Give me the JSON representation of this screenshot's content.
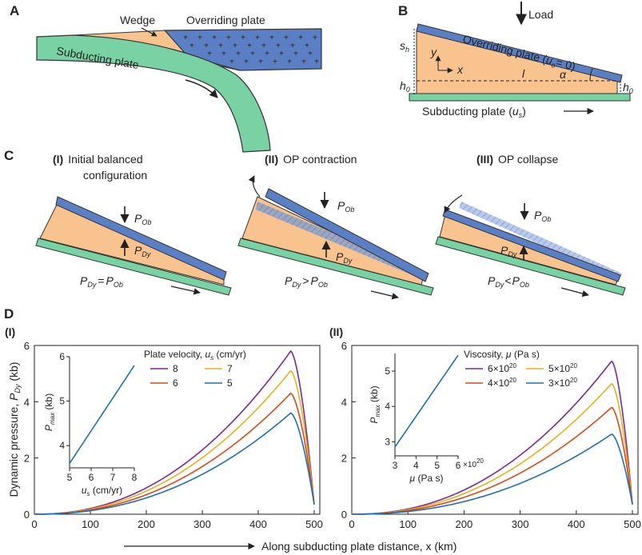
{
  "panels": {
    "A": {
      "letter": "A",
      "labels": {
        "wedge": "Wedge",
        "overriding": "Overriding plate",
        "subducting": "Subducting plate"
      }
    },
    "B": {
      "letter": "B",
      "labels": {
        "load": "Load",
        "overriding": "Overriding plate (",
        "u_o_eq": "= 0)",
        "subducting": "Subducting plate (",
        "sym_u": "u",
        "sub_o": "o",
        "sub_s": "s",
        "close_paren": ")",
        "s": "s",
        "s_sub": "h",
        "h": "h",
        "h_sub": "0",
        "y": "y",
        "x": "x",
        "l": "l",
        "alpha": "α"
      }
    },
    "C": {
      "letter": "C",
      "cases": [
        {
          "roman": "(I)",
          "title1": "Initial balanced",
          "title2": "configuration",
          "relation": "="
        },
        {
          "roman": "(II)",
          "title1": "OP contraction",
          "relation": ">"
        },
        {
          "roman": "(III)",
          "title1": "OP collapse",
          "relation": "<"
        }
      ],
      "symbols": {
        "P": "P",
        "sub_Ob": "Ob",
        "sub_Dy": "Dy"
      }
    },
    "D": {
      "letter": "D",
      "ylabel_main": "Dynamic pressure, ",
      "ylabel_sym": "P",
      "ylabel_sub": "Dy",
      "ylabel_unit": " (kb)",
      "xlabel": "Along subducting plate distance, x (km)",
      "inset_ylabel_sym": "P",
      "inset_ylabel_sub": "max",
      "inset_ylabel_unit": " (kb)"
    }
  },
  "chart_data": [
    {
      "type": "line",
      "panel": "(I)",
      "xlabel": "Along subducting plate distance, x (km)",
      "ylabel": "Dynamic pressure, P_Dy (kb)",
      "xlim": [
        0,
        510
      ],
      "ylim": [
        0,
        6
      ],
      "xticks": [
        0,
        100,
        200,
        300,
        400,
        500
      ],
      "yticks": [
        0,
        2,
        4,
        6
      ],
      "legend_title": "Plate velocity, u_s (cm/yr)",
      "legend_title_main": "Plate velocity, ",
      "legend_title_sym": "u",
      "legend_title_sub": "s",
      "legend_title_unit": " (cm/yr)",
      "series": [
        {
          "name": "8",
          "color": "#7b2a8f",
          "peak": 5.8
        },
        {
          "name": "7",
          "color": "#e6b020",
          "peak": 5.1
        },
        {
          "name": "6",
          "color": "#d8491c",
          "peak": 4.3
        },
        {
          "name": "5",
          "color": "#1f70b2",
          "peak": 3.6
        }
      ],
      "peak_x": 458,
      "end_value": 0.35,
      "inset": {
        "xlabel": "u_s (cm/yr)",
        "xlabel_sym": "u",
        "xlabel_sub": "s",
        "xlabel_unit": " (cm/yr)",
        "ylabel": "P_max (kb)",
        "x": [
          5,
          8
        ],
        "y": [
          3.6,
          5.8
        ],
        "xlim": [
          5,
          8
        ],
        "ylim": [
          3.5,
          6
        ],
        "xticks": [
          5,
          6,
          7,
          8
        ],
        "yticks": [
          4,
          5,
          6
        ],
        "color": "#1f70b2"
      }
    },
    {
      "type": "line",
      "panel": "(II)",
      "xlabel": "Along subducting plate distance, x (km)",
      "xlim": [
        0,
        510
      ],
      "ylim": [
        0,
        6
      ],
      "xticks": [
        0,
        100,
        200,
        300,
        400,
        500
      ],
      "yticks": [
        0,
        2,
        4,
        6
      ],
      "legend_title": "Viscosity, μ (Pa s)",
      "legend_title_main": "Viscosity, ",
      "legend_title_sym": "μ",
      "legend_title_unit": " (Pa s)",
      "series": [
        {
          "name": "6×10",
          "exp": "20",
          "color": "#7b2a8f",
          "peak": 5.45
        },
        {
          "name": "5×10",
          "exp": "20",
          "color": "#e6b020",
          "peak": 4.65
        },
        {
          "name": "4×10",
          "exp": "20",
          "color": "#d8491c",
          "peak": 3.8
        },
        {
          "name": "3×10",
          "exp": "20",
          "color": "#1f70b2",
          "peak": 2.85
        }
      ],
      "peak_x": 463,
      "end_value": 0.35,
      "inset": {
        "xlabel": "μ (Pa s)",
        "xlabel_sym": "μ",
        "xlabel_unit": " (Pa s)",
        "x_multiplier": "×10",
        "x_multiplier_exp": "20",
        "ylabel": "P_max (kb)",
        "x": [
          3,
          6
        ],
        "y": [
          2.85,
          5.45
        ],
        "xlim": [
          3,
          6
        ],
        "ylim": [
          2.6,
          5.5
        ],
        "xticks": [
          3,
          4,
          5,
          6
        ],
        "yticks": [
          3,
          4,
          5
        ],
        "color": "#1f70b2"
      }
    }
  ],
  "colors": {
    "blue_plate": "#5b7fc4",
    "green_plate": "#79d2a3",
    "wedge": "#f9c38f",
    "edge": "#333333"
  }
}
